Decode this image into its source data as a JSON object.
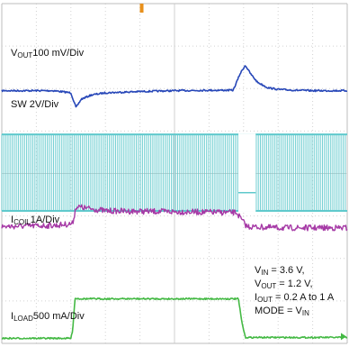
{
  "chart_data": {
    "type": "line",
    "title": "",
    "xlabel": "",
    "ylabel": "",
    "grid": true,
    "divisions": {
      "x": 10,
      "y": 8
    },
    "series": [
      {
        "name": "VOUT",
        "label_parts": [
          "V",
          "OUT",
          "100 mV/Div"
        ],
        "color": "#2747b8",
        "x_div": [
          0,
          0.5,
          1.5,
          2.0,
          2.15,
          2.3,
          2.6,
          3.0,
          4.0,
          5.0,
          6.0,
          6.7,
          6.9,
          7.05,
          7.2,
          7.4,
          7.7,
          8.0,
          8.5,
          9.0,
          10
        ],
        "y_div": [
          5.95,
          5.95,
          5.95,
          5.9,
          5.55,
          5.75,
          5.85,
          5.9,
          5.93,
          5.95,
          5.96,
          5.96,
          6.35,
          6.55,
          6.35,
          6.15,
          6.02,
          5.98,
          5.96,
          5.95,
          5.95
        ]
      },
      {
        "name": "SW",
        "label_parts": [
          "SW 2V/Div"
        ],
        "color": "#5fc9cc",
        "high_div": 4.92,
        "low_div": 3.12,
        "switching_stop_div": 6.85,
        "switching_restart_div": 7.35,
        "idle_level_div": 3.55
      },
      {
        "name": "ICOIL",
        "label_parts": [
          "I",
          "COIL",
          "1A/Div"
        ],
        "color": "#a63aa6",
        "x_div": [
          0,
          1.6,
          2.05,
          2.15,
          3.0,
          5.0,
          6.8,
          6.95,
          7.1,
          8.0,
          10
        ],
        "y_div": [
          2.75,
          2.78,
          2.82,
          3.22,
          3.12,
          3.1,
          3.08,
          2.9,
          2.75,
          2.72,
          2.72
        ]
      },
      {
        "name": "ILOAD",
        "label_parts": [
          "I",
          "LOAD",
          "500 mA/Div"
        ],
        "color": "#44b944",
        "x_div": [
          0,
          2.0,
          2.05,
          2.12,
          2.3,
          6.85,
          6.95,
          7.05,
          10
        ],
        "y_div": [
          0.12,
          0.12,
          0.3,
          1.06,
          1.05,
          1.05,
          0.5,
          0.14,
          0.14
        ]
      }
    ],
    "conditions": [
      [
        "V",
        "IN",
        " = 3.6 V,"
      ],
      [
        "V",
        "OUT",
        " = 1.2 V,"
      ],
      [
        "I",
        "OUT",
        " = 0.2 A to 1 A"
      ],
      [
        "MODE = V",
        "IN",
        ""
      ]
    ],
    "markers": {
      "trigger_color": "#e8901c",
      "ground_color": "#44b944"
    }
  }
}
